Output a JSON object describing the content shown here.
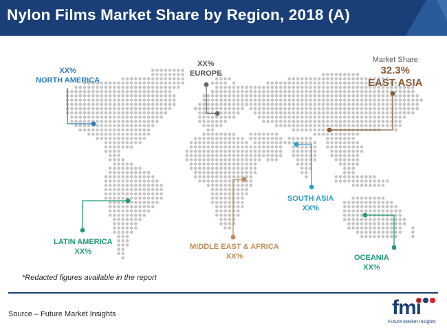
{
  "header": {
    "title": "Nylon Films Market Share by Region, 2018 (A)"
  },
  "chart_data": {
    "type": "map",
    "title": "Nylon Films Market Share by Region, 2018 (A)",
    "legend_label": "Market Share",
    "regions": [
      {
        "name": "NORTH AMERICA",
        "value": "XX%",
        "color": "#2a7ab8"
      },
      {
        "name": "EUROPE",
        "value": "XX%",
        "color": "#666666"
      },
      {
        "name": "EAST ASIA",
        "value": "32.3%",
        "color": "#8b5a34"
      },
      {
        "name": "SOUTH ASIA",
        "value": "XX%",
        "color": "#2a9fc9"
      },
      {
        "name": "LATIN AMERICA",
        "value": "XX%",
        "color": "#1e9a78"
      },
      {
        "name": "MIDDLE EAST & AFRICA",
        "value": "XX%",
        "color": "#c08a52"
      },
      {
        "name": "OCEANIA",
        "value": "XX%",
        "color": "#1e9a78"
      }
    ]
  },
  "footnote": "*Redacted figures available in the report",
  "source": "Source – Future Market Insights",
  "logo": {
    "word": "fmi",
    "tagline": "Future Market Insights"
  }
}
